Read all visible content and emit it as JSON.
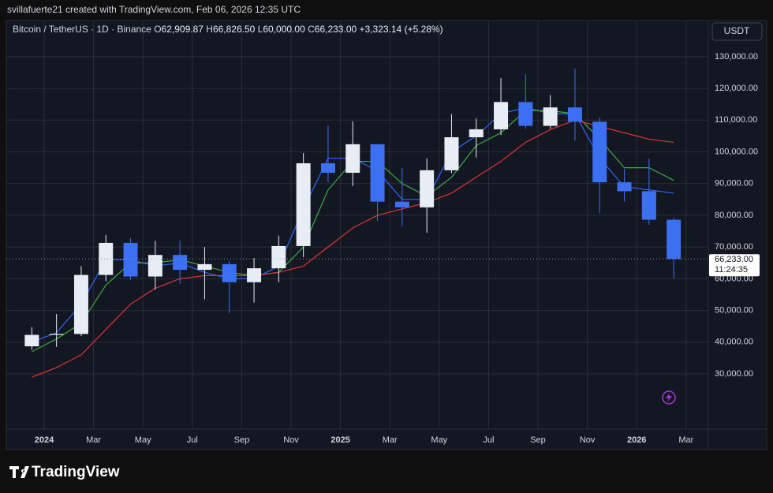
{
  "header": {
    "attribution": "svillafuerte21 created with TradingView.com, Feb 06, 2026 12:35 UTC"
  },
  "footer": {
    "logo": "TradingView"
  },
  "chart_data": {
    "type": "candlestick",
    "symbol": "Bitcoin / TetherUS · 1D · Binance",
    "legend_ohlc": [
      {
        "label": "O",
        "value": "62,909.87"
      },
      {
        "label": "H",
        "value": "66,826.50"
      },
      {
        "label": "L",
        "value": "60,000.00"
      },
      {
        "label": "C",
        "value": "66,233.00"
      }
    ],
    "change": "+3,323.14 (+5.28%)",
    "currency": "USDT",
    "categories": [
      null,
      "2024",
      null,
      "Mar",
      null,
      "May",
      null,
      "Jul",
      null,
      "Sep",
      null,
      "Nov",
      null,
      "2025",
      null,
      "Mar",
      null,
      "May",
      null,
      "Jul",
      null,
      "Sep",
      null,
      "Nov",
      null,
      "2026",
      null,
      "Mar"
    ],
    "open": [
      38700,
      42300,
      42600,
      61200,
      71300,
      60700,
      67500,
      62800,
      64600,
      58900,
      63300,
      70300,
      96400,
      93400,
      102400,
      84300,
      82500,
      94200,
      104600,
      107100,
      115700,
      108200,
      114000,
      109500,
      90400,
      87600,
      78600,
      null
    ],
    "high": [
      44700,
      48900,
      64000,
      73800,
      72800,
      71900,
      72000,
      70000,
      65600,
      66500,
      73600,
      99600,
      108300,
      109600,
      102500,
      95000,
      97900,
      111900,
      110500,
      123200,
      124500,
      117900,
      126200,
      110800,
      94600,
      97900,
      79300,
      null
    ],
    "low": [
      37600,
      38500,
      41900,
      59200,
      59600,
      56600,
      58400,
      53500,
      49100,
      52500,
      58900,
      66800,
      90500,
      89200,
      78200,
      76600,
      74500,
      93300,
      98200,
      105300,
      107300,
      107300,
      103500,
      80600,
      84400,
      77000,
      60000,
      null
    ],
    "close": [
      42300,
      42600,
      61200,
      71300,
      60700,
      67500,
      62800,
      64600,
      58900,
      63300,
      70300,
      96400,
      93400,
      102400,
      84300,
      82500,
      94200,
      104600,
      107100,
      115700,
      108200,
      114000,
      109500,
      90400,
      87600,
      78600,
      66233,
      null
    ],
    "up_color": "#e8ecf5",
    "down_color": "#3d6ff2",
    "series": [
      {
        "color": "#2f66ff",
        "values": [
          40000,
          43000,
          52000,
          66000,
          66000,
          64000,
          65000,
          62000,
          60000,
          60000,
          64000,
          82000,
          98000,
          98000,
          94000,
          85000,
          85000,
          100000,
          105000,
          112000,
          114000,
          112000,
          112000,
          98000,
          89000,
          88000,
          87000,
          null
        ]
      },
      {
        "color": "#3fa846",
        "values": [
          37000,
          41000,
          46000,
          58000,
          65000,
          65000,
          66000,
          64000,
          62000,
          61000,
          62000,
          70000,
          88000,
          97000,
          97000,
          90000,
          86000,
          92000,
          102000,
          106000,
          113000,
          113000,
          112000,
          104000,
          95000,
          95000,
          91000,
          null
        ]
      },
      {
        "color": "#e0323c",
        "values": [
          29000,
          32000,
          36000,
          44000,
          52000,
          57000,
          60000,
          61000,
          61000,
          61000,
          62000,
          64000,
          70000,
          76000,
          80000,
          82000,
          84000,
          87000,
          92000,
          97000,
          103000,
          107000,
          110000,
          108000,
          106000,
          104000,
          103000,
          null
        ]
      }
    ],
    "last_price": 66233,
    "last_price_label": "66,233.00",
    "countdown": "11:24:35",
    "ylim": [
      12600,
      141400
    ],
    "yticks": [
      {
        "value": 30000,
        "label": "30,000.00"
      },
      {
        "value": 40000,
        "label": "40,000.00"
      },
      {
        "value": 50000,
        "label": "50,000.00"
      },
      {
        "value": 60000,
        "label": "60,000.00"
      },
      {
        "value": 70000,
        "label": "70,000.00"
      },
      {
        "value": 80000,
        "label": "80,000.00"
      },
      {
        "value": 90000,
        "label": "90,000.00"
      },
      {
        "value": 100000,
        "label": "100,000.00"
      },
      {
        "value": 110000,
        "label": "110,000.00"
      },
      {
        "value": 120000,
        "label": "120,000.00"
      },
      {
        "value": 130000,
        "label": "130,000.00"
      }
    ],
    "grid": true
  }
}
